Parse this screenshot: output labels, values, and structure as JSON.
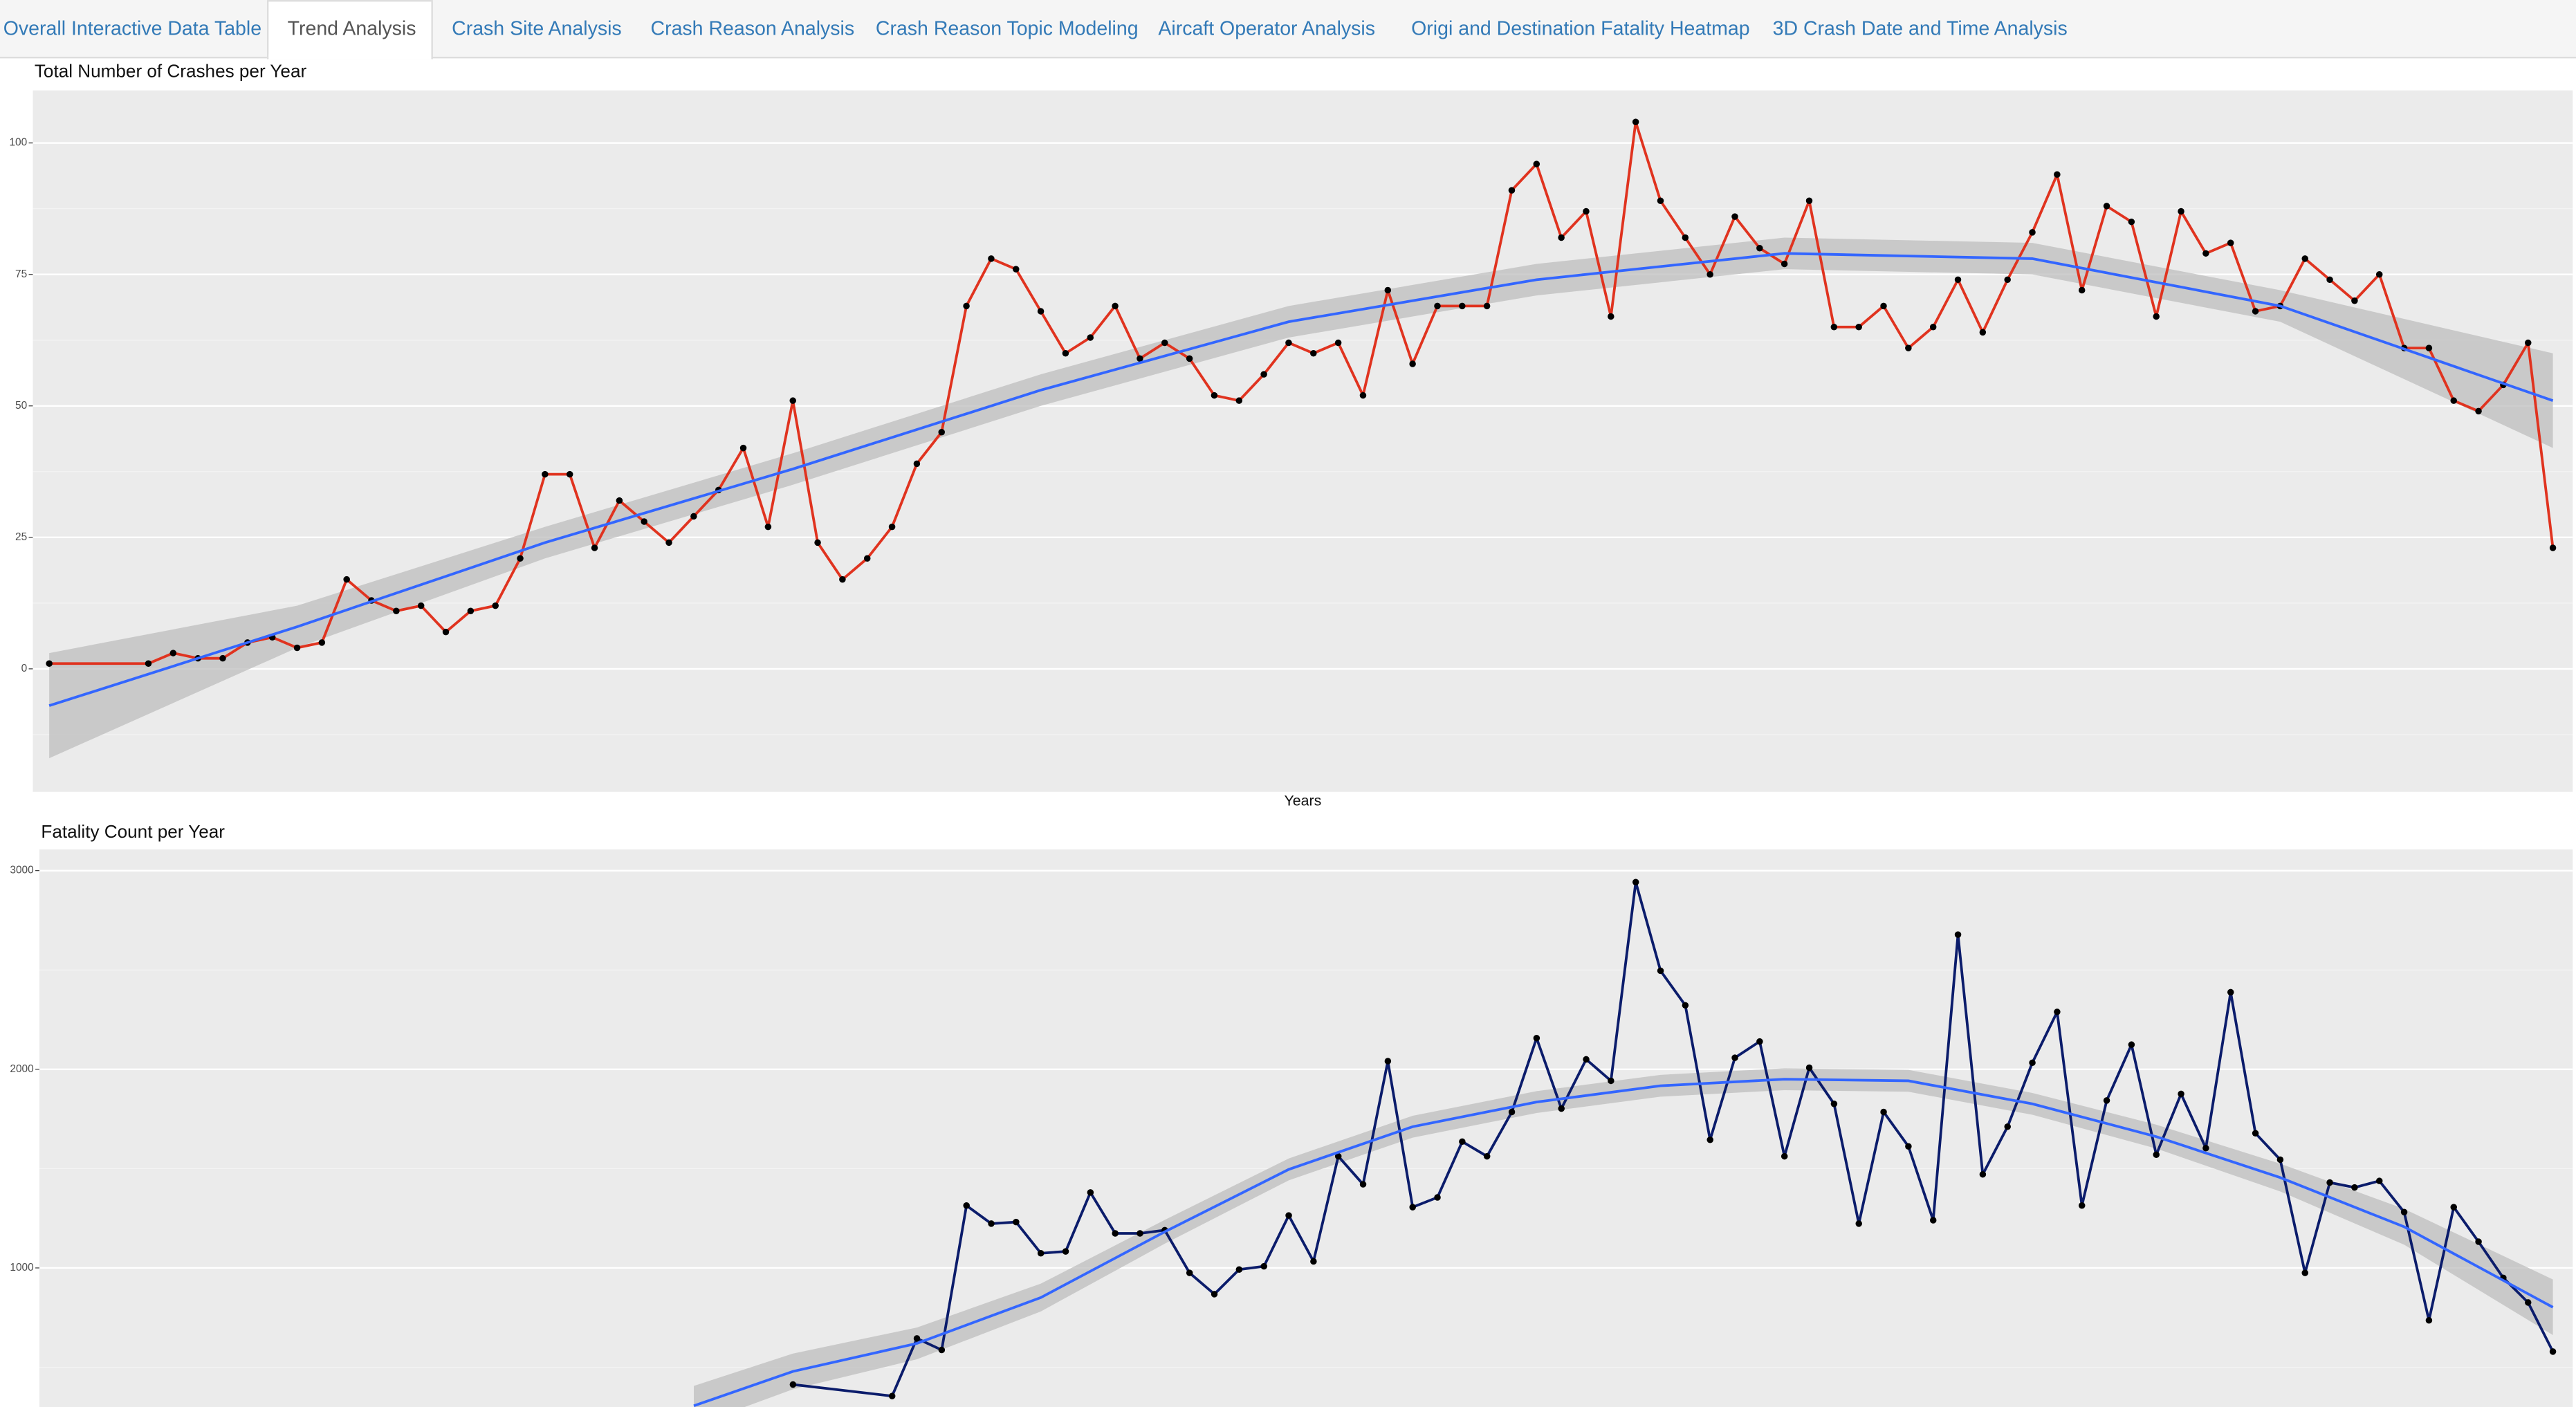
{
  "tabs": [
    {
      "label": "Overall Interactive Data Table",
      "active": false
    },
    {
      "label": "Trend Analysis",
      "active": true
    },
    {
      "label": "Crash Site Analysis",
      "active": false
    },
    {
      "label": "Crash Reason Analysis",
      "active": false
    },
    {
      "label": "Crash Reason Topic Modeling",
      "active": false
    },
    {
      "label": "Aircaft Operator Analysis",
      "active": false
    },
    {
      "label": "Origi and Destination Fatality Heatmap",
      "active": false
    },
    {
      "label": "3D Crash Date and Time Analysis",
      "active": false
    }
  ],
  "chart_data": [
    {
      "type": "line",
      "title": "Total Number of Crashes per Year",
      "x_label": "Years",
      "x": [
        0,
        4,
        5,
        6,
        7,
        8,
        9,
        10,
        11,
        12,
        13,
        14,
        15,
        16,
        17,
        18,
        19,
        20,
        21,
        22,
        23,
        24,
        25,
        26,
        27,
        28,
        29,
        30,
        31,
        32,
        33,
        34,
        35,
        36,
        37,
        38,
        39,
        40,
        41,
        42,
        43,
        44,
        45,
        46,
        47,
        48,
        49,
        50,
        51,
        52,
        53,
        54,
        55,
        56,
        57,
        58,
        59,
        60,
        61,
        62,
        63,
        64,
        65,
        66,
        67,
        68,
        69,
        70,
        71,
        72,
        73,
        74,
        75,
        76,
        77,
        78,
        79,
        80,
        81,
        82,
        83,
        84,
        85,
        86,
        87,
        88,
        89,
        90,
        91,
        92,
        93,
        94,
        95,
        96,
        97,
        98,
        99,
        100,
        101
      ],
      "values": [
        1,
        1,
        3,
        2,
        2,
        5,
        6,
        4,
        5,
        17,
        13,
        11,
        12,
        7,
        11,
        12,
        21,
        37,
        37,
        23,
        32,
        28,
        24,
        29,
        34,
        42,
        27,
        51,
        24,
        17,
        21,
        27,
        39,
        45,
        69,
        78,
        76,
        68,
        60,
        63,
        69,
        59,
        62,
        59,
        52,
        51,
        56,
        62,
        60,
        62,
        52,
        72,
        58,
        69,
        69,
        69,
        91,
        96,
        82,
        87,
        67,
        104,
        89,
        82,
        75,
        86,
        80,
        77,
        89,
        65,
        65,
        69,
        61,
        65,
        74,
        64,
        74,
        83,
        94,
        72,
        88,
        85,
        67,
        87,
        79,
        81,
        68,
        69,
        78,
        74,
        70,
        75,
        61,
        61,
        51,
        49,
        54,
        62,
        23
      ],
      "color": "#e0331f",
      "point_color": "#000000",
      "smooth": {
        "x": [
          0,
          10,
          20,
          30,
          40,
          50,
          60,
          70,
          80,
          90,
          101
        ],
        "values": [
          -7,
          8,
          24,
          38,
          53,
          66,
          74,
          79,
          78,
          69,
          51
        ],
        "lower": [
          -17,
          4,
          21,
          35,
          50,
          63,
          71,
          76,
          75,
          66,
          42
        ],
        "upper": [
          3,
          12,
          27,
          41,
          56,
          69,
          77,
          82,
          81,
          72,
          60
        ],
        "color": "#3366ff",
        "band_color": "#bdbdbd"
      },
      "xlim": [
        -0.66,
        101.8
      ],
      "ylim": [
        -23.4,
        110
      ],
      "yticks": [
        0,
        25,
        50,
        75,
        100
      ],
      "grid": true
    },
    {
      "type": "line",
      "title": "Fatality Count per Year",
      "x": [
        30,
        34,
        35,
        36,
        37,
        38,
        39,
        40,
        41,
        42,
        43,
        44,
        45,
        46,
        47,
        48,
        49,
        50,
        51,
        52,
        53,
        54,
        55,
        56,
        57,
        58,
        59,
        60,
        61,
        62,
        63,
        64,
        65,
        66,
        67,
        68,
        69,
        70,
        71,
        72,
        73,
        74,
        75,
        76,
        77,
        78,
        79,
        80,
        81,
        82,
        83,
        84,
        85,
        86,
        87,
        88,
        89,
        90,
        91,
        92,
        93,
        94,
        95,
        96,
        97,
        98,
        99,
        100,
        101
      ],
      "values": [
        413,
        355,
        645,
        587,
        1314,
        1223,
        1231,
        1074,
        1083,
        1380,
        1174,
        1174,
        1190,
        975,
        868,
        992,
        1008,
        1264,
        1033,
        1562,
        1421,
        2041,
        1306,
        1355,
        1636,
        1562,
        1785,
        2157,
        1802,
        2050,
        1942,
        2942,
        2496,
        2322,
        1645,
        2058,
        2140,
        1562,
        2008,
        1826,
        1223,
        1785,
        1612,
        1240,
        2678,
        1471,
        1711,
        2033,
        2289,
        1314,
        1843,
        2124,
        1570,
        1876,
        1603,
        2388,
        1678,
        1545,
        975,
        1430,
        1405,
        1438,
        1281,
        736,
        1306,
        1132,
        950,
        826,
        579
      ],
      "color": "#0b1c6b",
      "point_color": "#000000",
      "smooth": {
        "x": [
          26,
          30,
          35,
          40,
          45,
          50,
          55,
          60,
          65,
          70,
          75,
          80,
          85,
          90,
          95,
          101
        ],
        "values": [
          306,
          479,
          620,
          851,
          1182,
          1496,
          1711,
          1835,
          1917,
          1950,
          1942,
          1826,
          1661,
          1455,
          1207,
          802
        ],
        "lower": [
          206,
          389,
          540,
          781,
          1122,
          1441,
          1656,
          1780,
          1862,
          1895,
          1887,
          1771,
          1601,
          1385,
          1117,
          662
        ],
        "upper": [
          406,
          569,
          700,
          921,
          1242,
          1551,
          1766,
          1890,
          1972,
          2005,
          1997,
          1881,
          1721,
          1525,
          1297,
          942
        ],
        "color": "#3366ff",
        "band_color": "#bdbdbd"
      },
      "xlim": [
        -0.4,
        101.8
      ],
      "ylim": [
        300,
        3107
      ],
      "yticks": [
        1000,
        2000,
        3000
      ],
      "grid": true
    }
  ]
}
